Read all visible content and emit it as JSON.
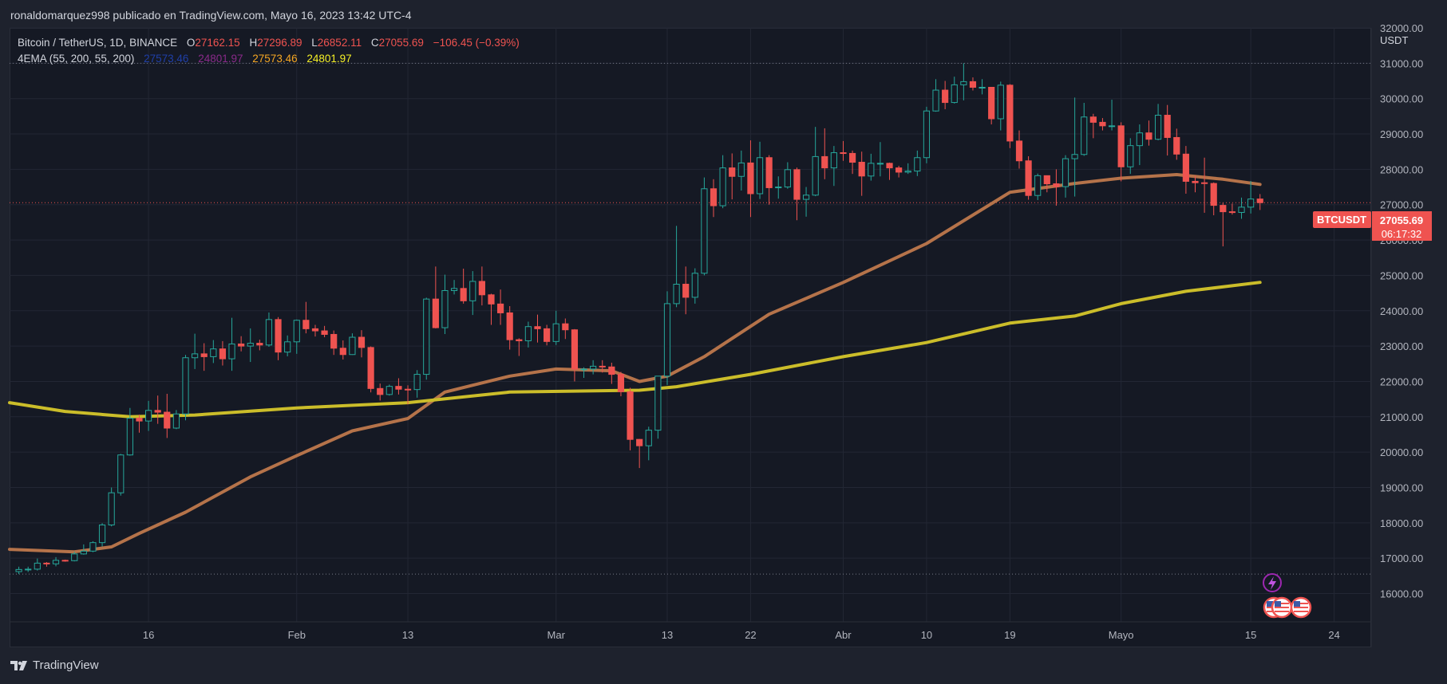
{
  "header": {
    "publish_text": "ronaldomarquez998 publicado en TradingView.com, Mayo 16, 2023 13:42 UTC-4"
  },
  "legend": {
    "symbol": "Bitcoin / TetherUS, 1D, BINANCE",
    "o_label": "O",
    "o_value": "27162.15",
    "h_label": "H",
    "h_value": "27296.89",
    "l_label": "L",
    "l_value": "26852.11",
    "c_label": "C",
    "c_value": "27055.69",
    "change": "−106.45 (−0.39%)",
    "indicator": "4EMA (55, 200, 55, 200)",
    "ind_values": [
      "27573.46",
      "24801.97",
      "27573.46",
      "24801.97"
    ]
  },
  "axis": {
    "currency": "USDT"
  },
  "price_label": {
    "ticker": "BTCUSDT",
    "price": "27055.69",
    "countdown": "06:17:32"
  },
  "footer": {
    "brand": "TradingView"
  },
  "colors": {
    "background": "#151924",
    "up": "#26a69a",
    "down": "#ef5350",
    "ema55": "#b5734a",
    "ema200": "#cbbd2a",
    "grid": "#232734"
  },
  "chart_data": {
    "type": "candlestick",
    "title": "Bitcoin / TetherUS, 1D, BINANCE",
    "ylabel": "USDT",
    "ylim": [
      15200,
      32000
    ],
    "y_ticks": [
      16000,
      17000,
      18000,
      19000,
      20000,
      21000,
      22000,
      23000,
      24000,
      25000,
      26000,
      27000,
      28000,
      29000,
      30000,
      31000,
      32000
    ],
    "x_ticks": [
      {
        "label": "16",
        "date": "2023-01-16"
      },
      {
        "label": "Feb",
        "date": "2023-02-01"
      },
      {
        "label": "13",
        "date": "2023-02-13"
      },
      {
        "label": "Mar",
        "date": "2023-03-01"
      },
      {
        "label": "13",
        "date": "2023-03-13"
      },
      {
        "label": "22",
        "date": "2023-03-22"
      },
      {
        "label": "Abr",
        "date": "2023-04-01"
      },
      {
        "label": "10",
        "date": "2023-04-10"
      },
      {
        "label": "19",
        "date": "2023-04-19"
      },
      {
        "label": "Mayo",
        "date": "2023-05-01"
      },
      {
        "label": "15",
        "date": "2023-05-15"
      },
      {
        "label": "24",
        "date": "2023-05-24"
      }
    ],
    "x_range": [
      "2023-01-01",
      "2023-05-28"
    ],
    "horizontal_levels": [
      31000,
      16550
    ],
    "last_price": 27055.69,
    "candles": [
      [
        "2023-01-02",
        16620,
        16760,
        16550,
        16680
      ],
      [
        "2023-01-03",
        16680,
        16760,
        16610,
        16690
      ],
      [
        "2023-01-04",
        16690,
        16990,
        16650,
        16860
      ],
      [
        "2023-01-05",
        16860,
        16890,
        16760,
        16840
      ],
      [
        "2023-01-06",
        16840,
        17030,
        16770,
        16940
      ],
      [
        "2023-01-07",
        16940,
        16960,
        16900,
        16930
      ],
      [
        "2023-01-08",
        16930,
        17180,
        16910,
        17120
      ],
      [
        "2023-01-09",
        17120,
        17390,
        17100,
        17200
      ],
      [
        "2023-01-10",
        17200,
        17480,
        17170,
        17440
      ],
      [
        "2023-01-11",
        17440,
        17990,
        17330,
        17940
      ],
      [
        "2023-01-12",
        17940,
        19000,
        17900,
        18850
      ],
      [
        "2023-01-13",
        18850,
        19950,
        18770,
        19920
      ],
      [
        "2023-01-14",
        19920,
        21250,
        19900,
        20960
      ],
      [
        "2023-01-15",
        20960,
        21060,
        20550,
        20880
      ],
      [
        "2023-01-16",
        20880,
        21450,
        20600,
        21180
      ],
      [
        "2023-01-17",
        21180,
        21600,
        20800,
        21130
      ],
      [
        "2023-01-18",
        21130,
        21650,
        20400,
        20680
      ],
      [
        "2023-01-19",
        20680,
        21190,
        20650,
        21080
      ],
      [
        "2023-01-20",
        21080,
        22750,
        20900,
        22670
      ],
      [
        "2023-01-21",
        22670,
        23350,
        22350,
        22780
      ],
      [
        "2023-01-22",
        22780,
        23080,
        22300,
        22700
      ],
      [
        "2023-01-23",
        22700,
        23170,
        22520,
        22920
      ],
      [
        "2023-01-24",
        22920,
        23140,
        22450,
        22640
      ],
      [
        "2023-01-25",
        22640,
        23800,
        22300,
        23060
      ],
      [
        "2023-01-26",
        23060,
        23280,
        22850,
        23000
      ],
      [
        "2023-01-27",
        23000,
        23500,
        22550,
        23080
      ],
      [
        "2023-01-28",
        23080,
        23180,
        22880,
        23030
      ],
      [
        "2023-01-29",
        23030,
        23950,
        22980,
        23750
      ],
      [
        "2023-01-30",
        23750,
        23820,
        22600,
        22830
      ],
      [
        "2023-01-31",
        22830,
        23300,
        22710,
        23120
      ],
      [
        "2023-02-01",
        23120,
        23750,
        22780,
        23730
      ],
      [
        "2023-02-02",
        23730,
        24250,
        23360,
        23490
      ],
      [
        "2023-02-03",
        23490,
        23600,
        23270,
        23430
      ],
      [
        "2023-02-04",
        23430,
        23570,
        23250,
        23330
      ],
      [
        "2023-02-05",
        23330,
        23440,
        22750,
        22940
      ],
      [
        "2023-02-06",
        22940,
        23160,
        22620,
        22760
      ],
      [
        "2023-02-07",
        22760,
        23360,
        22750,
        23250
      ],
      [
        "2023-02-08",
        23250,
        23450,
        22680,
        22960
      ],
      [
        "2023-02-09",
        22960,
        22990,
        21690,
        21800
      ],
      [
        "2023-02-10",
        21800,
        21940,
        21460,
        21630
      ],
      [
        "2023-02-11",
        21630,
        21910,
        21600,
        21860
      ],
      [
        "2023-02-12",
        21860,
        22090,
        21630,
        21780
      ],
      [
        "2023-02-13",
        21780,
        21890,
        21350,
        21770
      ],
      [
        "2023-02-14",
        21770,
        22320,
        21540,
        22200
      ],
      [
        "2023-02-15",
        22200,
        24370,
        22050,
        24330
      ],
      [
        "2023-02-16",
        24330,
        25250,
        23500,
        23520
      ],
      [
        "2023-02-17",
        23520,
        25020,
        23340,
        24570
      ],
      [
        "2023-02-18",
        24570,
        24870,
        24460,
        24630
      ],
      [
        "2023-02-19",
        24630,
        25190,
        24200,
        24280
      ],
      [
        "2023-02-20",
        24280,
        25120,
        23880,
        24830
      ],
      [
        "2023-02-21",
        24830,
        25250,
        24150,
        24450
      ],
      [
        "2023-02-22",
        24450,
        24480,
        23600,
        24190
      ],
      [
        "2023-02-23",
        24190,
        24600,
        23600,
        23940
      ],
      [
        "2023-02-24",
        23940,
        24130,
        22900,
        23180
      ],
      [
        "2023-02-25",
        23180,
        23220,
        22720,
        23150
      ],
      [
        "2023-02-26",
        23150,
        23690,
        22960,
        23550
      ],
      [
        "2023-02-27",
        23550,
        23890,
        23100,
        23490
      ],
      [
        "2023-02-28",
        23490,
        23600,
        23020,
        23130
      ],
      [
        "2023-03-01",
        23130,
        24000,
        23030,
        23630
      ],
      [
        "2023-03-02",
        23630,
        23780,
        23200,
        23460
      ],
      [
        "2023-03-03",
        23460,
        23480,
        22000,
        22350
      ],
      [
        "2023-03-04",
        22350,
        22400,
        22100,
        22350
      ],
      [
        "2023-03-05",
        22350,
        22600,
        22200,
        22430
      ],
      [
        "2023-03-06",
        22430,
        22600,
        22250,
        22410
      ],
      [
        "2023-03-07",
        22410,
        22530,
        21930,
        22200
      ],
      [
        "2023-03-08",
        22200,
        22270,
        21580,
        21710
      ],
      [
        "2023-03-09",
        21710,
        21820,
        20050,
        20360
      ],
      [
        "2023-03-10",
        20360,
        20370,
        19550,
        20180
      ],
      [
        "2023-03-11",
        20180,
        20720,
        19770,
        20620
      ],
      [
        "2023-03-12",
        20620,
        22150,
        20380,
        22150
      ],
      [
        "2023-03-13",
        22150,
        24550,
        21900,
        24200
      ],
      [
        "2023-03-14",
        24200,
        26400,
        24100,
        24750
      ],
      [
        "2023-03-15",
        24750,
        25250,
        23900,
        24380
      ],
      [
        "2023-03-16",
        24380,
        25200,
        24200,
        25060
      ],
      [
        "2023-03-17",
        25060,
        27770,
        25000,
        27450
      ],
      [
        "2023-03-18",
        27450,
        27720,
        26650,
        26970
      ],
      [
        "2023-03-19",
        26970,
        28400,
        26900,
        28040
      ],
      [
        "2023-03-20",
        28040,
        28450,
        27150,
        27800
      ],
      [
        "2023-03-21",
        27800,
        28530,
        27400,
        28180
      ],
      [
        "2023-03-22",
        28180,
        28820,
        26650,
        27310
      ],
      [
        "2023-03-23",
        27310,
        28780,
        27160,
        28330
      ],
      [
        "2023-03-24",
        28330,
        28400,
        27000,
        27480
      ],
      [
        "2023-03-25",
        27480,
        27800,
        27170,
        27500
      ],
      [
        "2023-03-26",
        27500,
        28200,
        27450,
        27990
      ],
      [
        "2023-03-27",
        27990,
        28050,
        26560,
        27150
      ],
      [
        "2023-03-28",
        27150,
        27500,
        26660,
        27270
      ],
      [
        "2023-03-29",
        27270,
        29200,
        27240,
        28360
      ],
      [
        "2023-03-30",
        28360,
        29160,
        27720,
        28040
      ],
      [
        "2023-03-31",
        28040,
        28660,
        27530,
        28470
      ],
      [
        "2023-04-01",
        28470,
        28800,
        28240,
        28450
      ],
      [
        "2023-04-02",
        28450,
        28530,
        27870,
        28200
      ],
      [
        "2023-04-03",
        28200,
        28500,
        27250,
        27810
      ],
      [
        "2023-04-04",
        27810,
        28440,
        27680,
        28170
      ],
      [
        "2023-04-05",
        28170,
        28770,
        27800,
        28170
      ],
      [
        "2023-04-06",
        28170,
        28190,
        27700,
        28040
      ],
      [
        "2023-04-07",
        28040,
        28100,
        27770,
        27920
      ],
      [
        "2023-04-08",
        27920,
        28170,
        27870,
        27950
      ],
      [
        "2023-04-09",
        27950,
        28530,
        27810,
        28330
      ],
      [
        "2023-04-10",
        28330,
        29770,
        28170,
        29650
      ],
      [
        "2023-04-11",
        29650,
        30550,
        29630,
        30240
      ],
      [
        "2023-04-12",
        30240,
        30500,
        29700,
        29890
      ],
      [
        "2023-04-13",
        29890,
        30620,
        29860,
        30390
      ],
      [
        "2023-04-14",
        30390,
        31000,
        29950,
        30480
      ],
      [
        "2023-04-15",
        30480,
        30600,
        30230,
        30320
      ],
      [
        "2023-04-16",
        30320,
        30550,
        30120,
        30320
      ],
      [
        "2023-04-17",
        30320,
        30330,
        29270,
        29430
      ],
      [
        "2023-04-18",
        29430,
        30480,
        29100,
        30380
      ],
      [
        "2023-04-19",
        30380,
        30410,
        28600,
        28800
      ],
      [
        "2023-04-20",
        28800,
        29100,
        28020,
        28240
      ],
      [
        "2023-04-21",
        28240,
        28370,
        27140,
        27260
      ],
      [
        "2023-04-22",
        27260,
        27880,
        27130,
        27820
      ],
      [
        "2023-04-23",
        27820,
        27820,
        27350,
        27590
      ],
      [
        "2023-04-24",
        27590,
        28000,
        26970,
        27510
      ],
      [
        "2023-04-25",
        27510,
        28400,
        27200,
        28300
      ],
      [
        "2023-04-26",
        28300,
        30030,
        27230,
        28420
      ],
      [
        "2023-04-27",
        28420,
        29880,
        28380,
        29480
      ],
      [
        "2023-04-28",
        29480,
        29570,
        28880,
        29330
      ],
      [
        "2023-04-29",
        29330,
        29450,
        29100,
        29230
      ],
      [
        "2023-04-30",
        29230,
        29970,
        29100,
        29230
      ],
      [
        "2023-05-01",
        29230,
        29330,
        27660,
        28070
      ],
      [
        "2023-05-02",
        28070,
        28880,
        27870,
        28670
      ],
      [
        "2023-05-03",
        28670,
        29270,
        28120,
        29030
      ],
      [
        "2023-05-04",
        29030,
        29380,
        28670,
        28850
      ],
      [
        "2023-05-05",
        28850,
        29850,
        28820,
        29530
      ],
      [
        "2023-05-06",
        29530,
        29820,
        28390,
        28900
      ],
      [
        "2023-05-07",
        28900,
        29150,
        28270,
        28430
      ],
      [
        "2023-05-08",
        28430,
        28660,
        27310,
        27660
      ],
      [
        "2023-05-09",
        27660,
        27820,
        27350,
        27620
      ],
      [
        "2023-05-10",
        27620,
        28330,
        26770,
        27600
      ],
      [
        "2023-05-11",
        27600,
        27630,
        26700,
        26980
      ],
      [
        "2023-05-12",
        26980,
        27050,
        25820,
        26800
      ],
      [
        "2023-05-13",
        26800,
        27030,
        26720,
        26780
      ],
      [
        "2023-05-14",
        26780,
        27200,
        26600,
        26930
      ],
      [
        "2023-05-15",
        26930,
        27670,
        26750,
        27160
      ],
      [
        "2023-05-16",
        27160,
        27300,
        26850,
        27056
      ]
    ],
    "series": [
      {
        "name": "EMA 55",
        "color": "#b5734a",
        "x": [
          "2023-01-01",
          "2023-01-08",
          "2023-01-12",
          "2023-01-15",
          "2023-01-20",
          "2023-01-27",
          "2023-02-01",
          "2023-02-07",
          "2023-02-13",
          "2023-02-17",
          "2023-02-24",
          "2023-03-01",
          "2023-03-07",
          "2023-03-10",
          "2023-03-13",
          "2023-03-17",
          "2023-03-24",
          "2023-04-01",
          "2023-04-10",
          "2023-04-19",
          "2023-04-26",
          "2023-05-01",
          "2023-05-07",
          "2023-05-12",
          "2023-05-16"
        ],
        "values": [
          17250,
          17180,
          17320,
          17700,
          18300,
          19300,
          19900,
          20600,
          20950,
          21700,
          22150,
          22350,
          22300,
          22000,
          22150,
          22700,
          23900,
          24800,
          25900,
          27350,
          27600,
          27750,
          27850,
          27720,
          27573
        ]
      },
      {
        "name": "EMA 200",
        "color": "#cbbd2a",
        "x": [
          "2023-01-01",
          "2023-01-07",
          "2023-01-14",
          "2023-01-21",
          "2023-02-01",
          "2023-02-13",
          "2023-02-24",
          "2023-03-10",
          "2023-03-14",
          "2023-03-22",
          "2023-04-01",
          "2023-04-10",
          "2023-04-19",
          "2023-04-26",
          "2023-05-01",
          "2023-05-08",
          "2023-05-16"
        ],
        "values": [
          21400,
          21150,
          21000,
          21050,
          21250,
          21400,
          21700,
          21750,
          21850,
          22200,
          22700,
          23100,
          23650,
          23850,
          24200,
          24550,
          24802
        ]
      }
    ]
  }
}
